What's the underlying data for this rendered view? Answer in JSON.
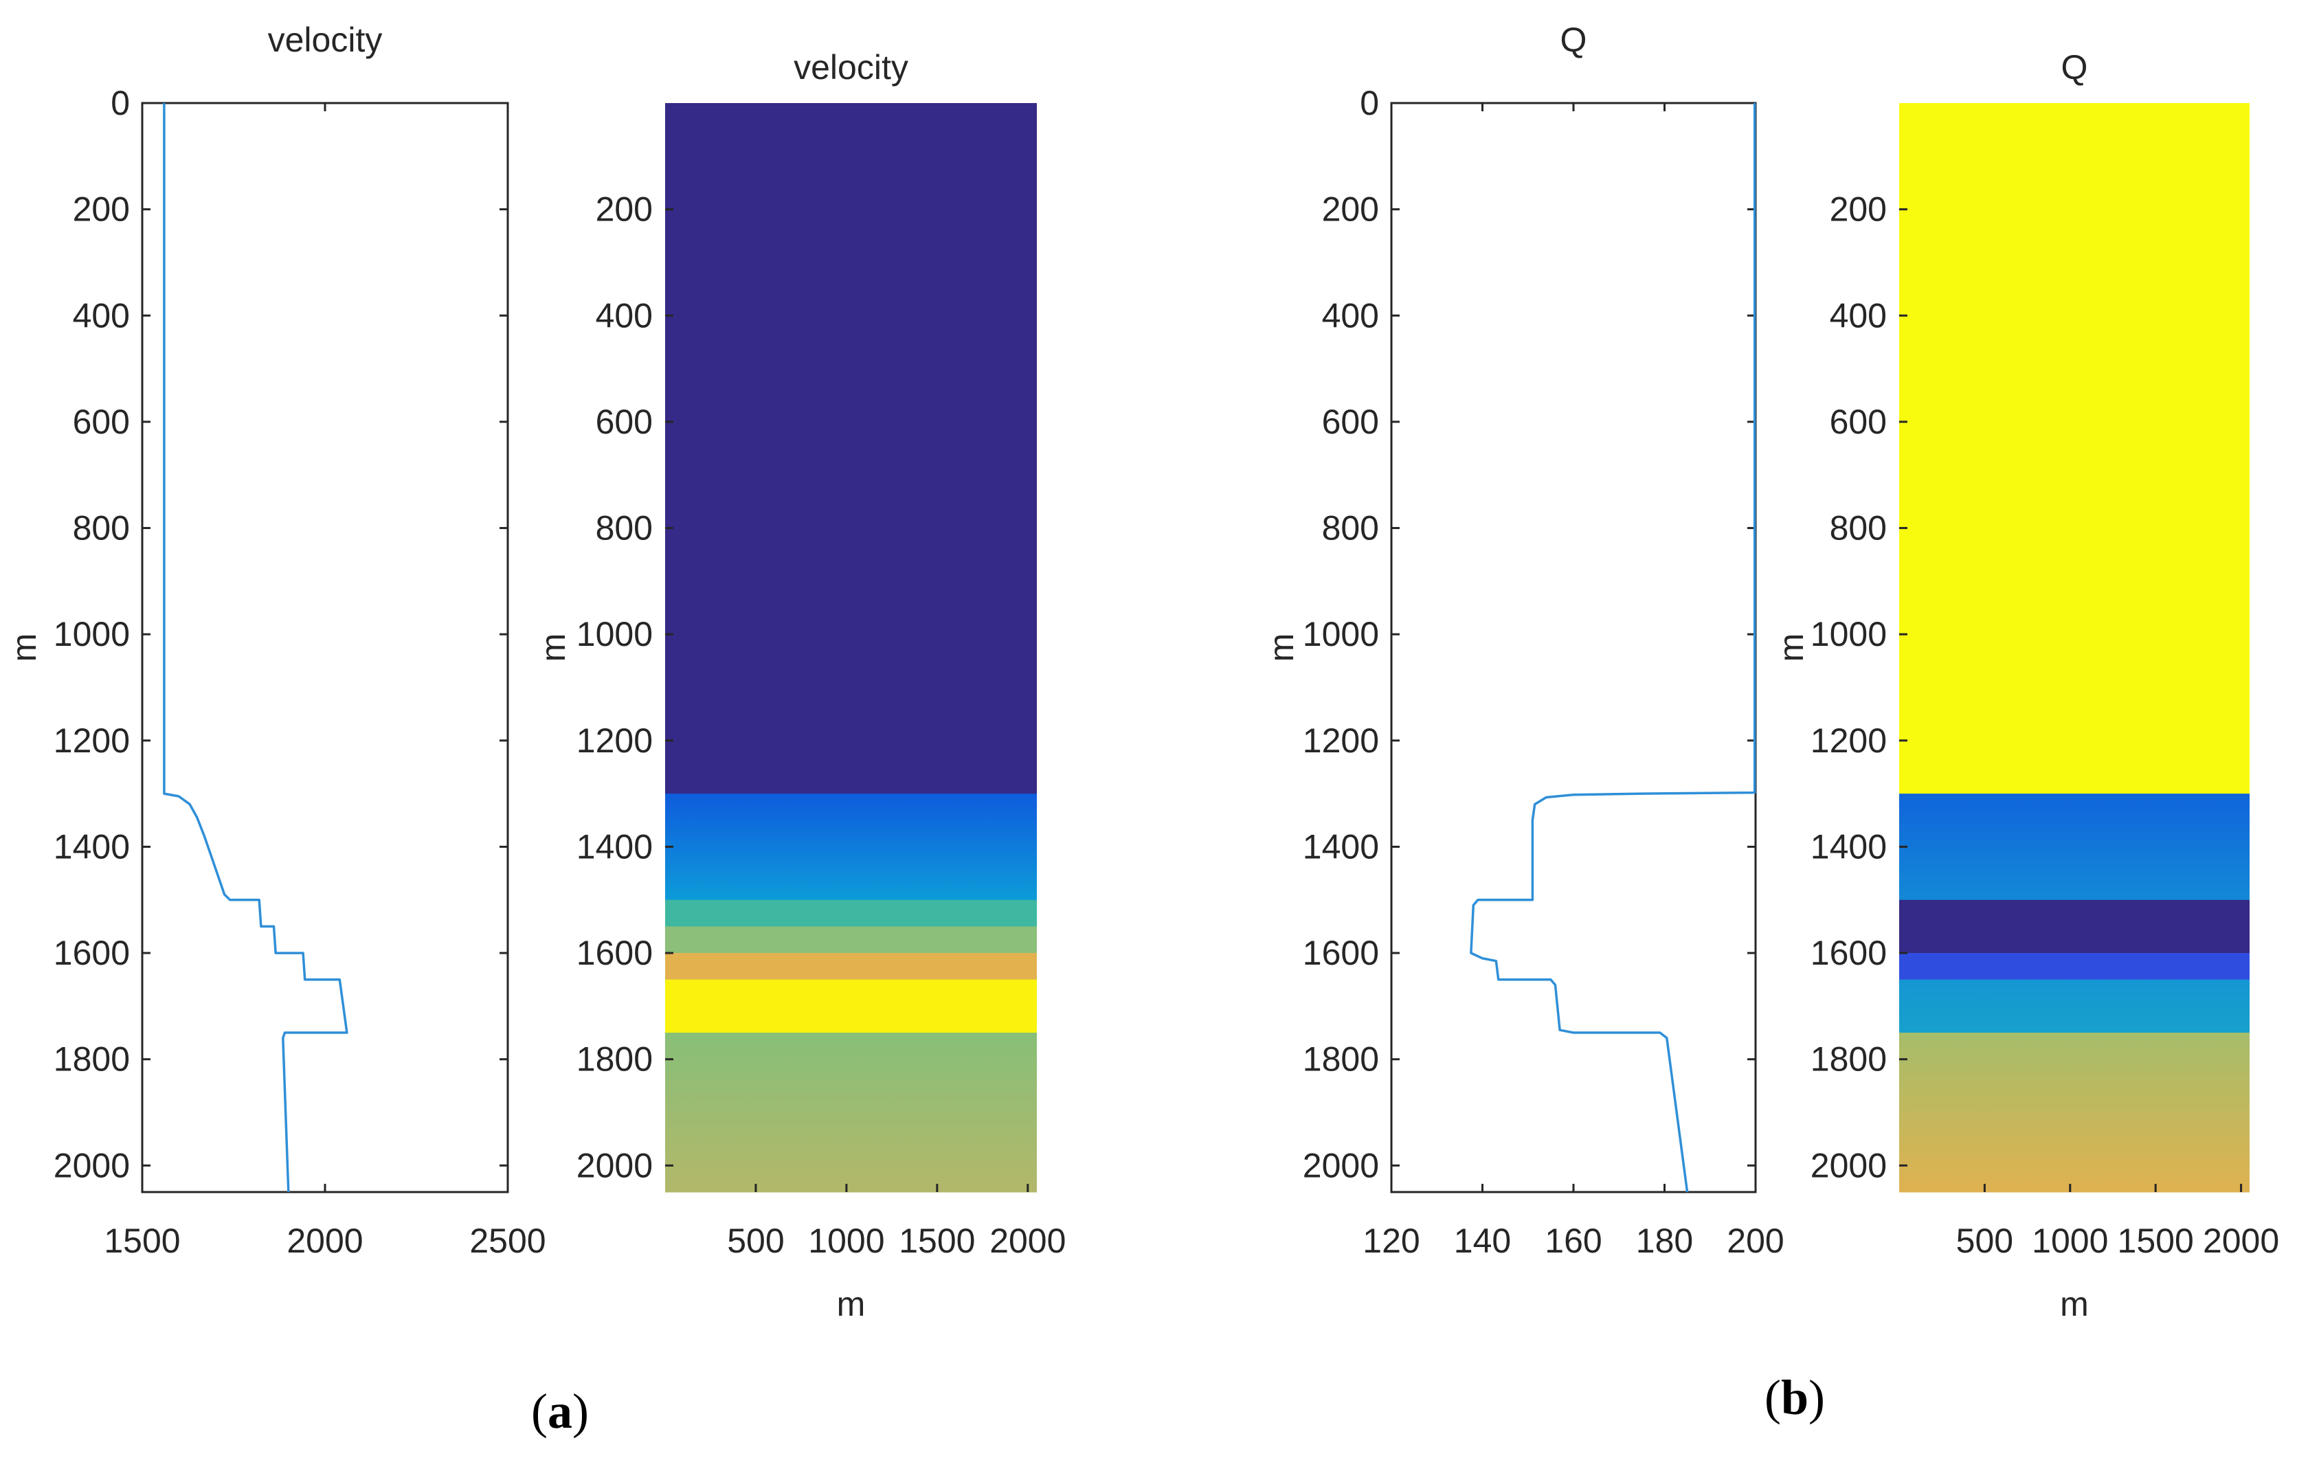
{
  "chart_data": [
    {
      "id": "vel_profile",
      "type": "line",
      "title": "velocity",
      "xlabel": "",
      "ylabel": "m",
      "xlim": [
        1500,
        2500
      ],
      "ylim": [
        0,
        2050
      ],
      "y_reversed": true,
      "xticks": [
        1500,
        2000,
        2500
      ],
      "yticks": [
        0,
        200,
        400,
        600,
        800,
        1000,
        1200,
        1400,
        1600,
        1800,
        2000
      ],
      "series": [
        {
          "name": "velocity",
          "color": "#2f8fd8",
          "points": [
            [
              1560,
              0
            ],
            [
              1560,
              1300
            ],
            [
              1600,
              1305
            ],
            [
              1630,
              1320
            ],
            [
              1650,
              1345
            ],
            [
              1670,
              1380
            ],
            [
              1690,
              1420
            ],
            [
              1710,
              1460
            ],
            [
              1725,
              1490
            ],
            [
              1740,
              1500
            ],
            [
              1820,
              1500
            ],
            [
              1825,
              1550
            ],
            [
              1860,
              1550
            ],
            [
              1865,
              1600
            ],
            [
              1940,
              1600
            ],
            [
              1945,
              1650
            ],
            [
              2040,
              1650
            ],
            [
              2060,
              1750
            ],
            [
              1890,
              1750
            ],
            [
              1885,
              1760
            ],
            [
              1900,
              2050
            ]
          ]
        }
      ]
    },
    {
      "id": "vel_image",
      "type": "heatmap",
      "title": "velocity",
      "xlabel": "m",
      "ylabel": "m",
      "xlim": [
        0,
        2050
      ],
      "ylim": [
        0,
        2050
      ],
      "y_reversed": true,
      "xticks": [
        500,
        1000,
        1500,
        2000
      ],
      "yticks": [
        200,
        400,
        600,
        800,
        1000,
        1200,
        1400,
        1600,
        1800,
        2000
      ],
      "layers": [
        {
          "top": 0,
          "bottom": 1300,
          "color_top": "#352a87",
          "color_bottom": "#352a87"
        },
        {
          "top": 1300,
          "bottom": 1500,
          "color_top": "#0f5cdd",
          "color_bottom": "#0d9bd8"
        },
        {
          "top": 1500,
          "bottom": 1550,
          "color_top": "#3eb8a0",
          "color_bottom": "#3eb8a0"
        },
        {
          "top": 1550,
          "bottom": 1600,
          "color_top": "#8cbf7a",
          "color_bottom": "#8cbf7a"
        },
        {
          "top": 1600,
          "bottom": 1650,
          "color_top": "#e3b24e",
          "color_bottom": "#e3b24e"
        },
        {
          "top": 1650,
          "bottom": 1750,
          "color_top": "#f9f30e",
          "color_bottom": "#f9f30e"
        },
        {
          "top": 1750,
          "bottom": 2050,
          "color_top": "#88bf78",
          "color_bottom": "#b3b86a"
        }
      ]
    },
    {
      "id": "q_profile",
      "type": "line",
      "title": "Q",
      "xlabel": "",
      "ylabel": "m",
      "xlim": [
        120,
        200
      ],
      "ylim": [
        0,
        2050
      ],
      "y_reversed": true,
      "xticks": [
        120,
        140,
        160,
        180,
        200
      ],
      "yticks": [
        0,
        200,
        400,
        600,
        800,
        1000,
        1200,
        1400,
        1600,
        1800,
        2000
      ],
      "series": [
        {
          "name": "Q",
          "color": "#2f8fd8",
          "points": [
            [
              199.8,
              0
            ],
            [
              199.8,
              1298
            ],
            [
              175,
              1300
            ],
            [
              160,
              1302
            ],
            [
              154,
              1307
            ],
            [
              151.5,
              1320
            ],
            [
              151,
              1350
            ],
            [
              151,
              1500
            ],
            [
              139,
              1500
            ],
            [
              138,
              1510
            ],
            [
              137.5,
              1600
            ],
            [
              140,
              1610
            ],
            [
              143,
              1615
            ],
            [
              143.5,
              1650
            ],
            [
              155,
              1650
            ],
            [
              156,
              1660
            ],
            [
              157,
              1745
            ],
            [
              160,
              1750
            ],
            [
              179,
              1750
            ],
            [
              180.5,
              1760
            ],
            [
              185,
              2050
            ]
          ]
        }
      ]
    },
    {
      "id": "q_image",
      "type": "heatmap",
      "title": "Q",
      "xlabel": "m",
      "ylabel": "m",
      "xlim": [
        0,
        2050
      ],
      "ylim": [
        0,
        2050
      ],
      "y_reversed": true,
      "xticks": [
        500,
        1000,
        1500,
        2000
      ],
      "yticks": [
        200,
        400,
        600,
        800,
        1000,
        1200,
        1400,
        1600,
        1800,
        2000
      ],
      "layers": [
        {
          "top": 0,
          "bottom": 1300,
          "color_top": "#f9fb0e",
          "color_bottom": "#f9fb0e"
        },
        {
          "top": 1300,
          "bottom": 1500,
          "color_top": "#1065da",
          "color_bottom": "#1489d6"
        },
        {
          "top": 1500,
          "bottom": 1600,
          "color_top": "#352a87",
          "color_bottom": "#352a87"
        },
        {
          "top": 1600,
          "bottom": 1650,
          "color_top": "#2f4ee0",
          "color_bottom": "#2f4ee0"
        },
        {
          "top": 1650,
          "bottom": 1750,
          "color_top": "#1596d3",
          "color_bottom": "#18a0cc"
        },
        {
          "top": 1750,
          "bottom": 2050,
          "color_top": "#a5bd6a",
          "color_bottom": "#e0b250"
        }
      ]
    }
  ],
  "captions": {
    "a": {
      "open": "(",
      "letter": "a",
      "close": ")"
    },
    "b": {
      "open": "(",
      "letter": "b",
      "close": ")"
    }
  }
}
